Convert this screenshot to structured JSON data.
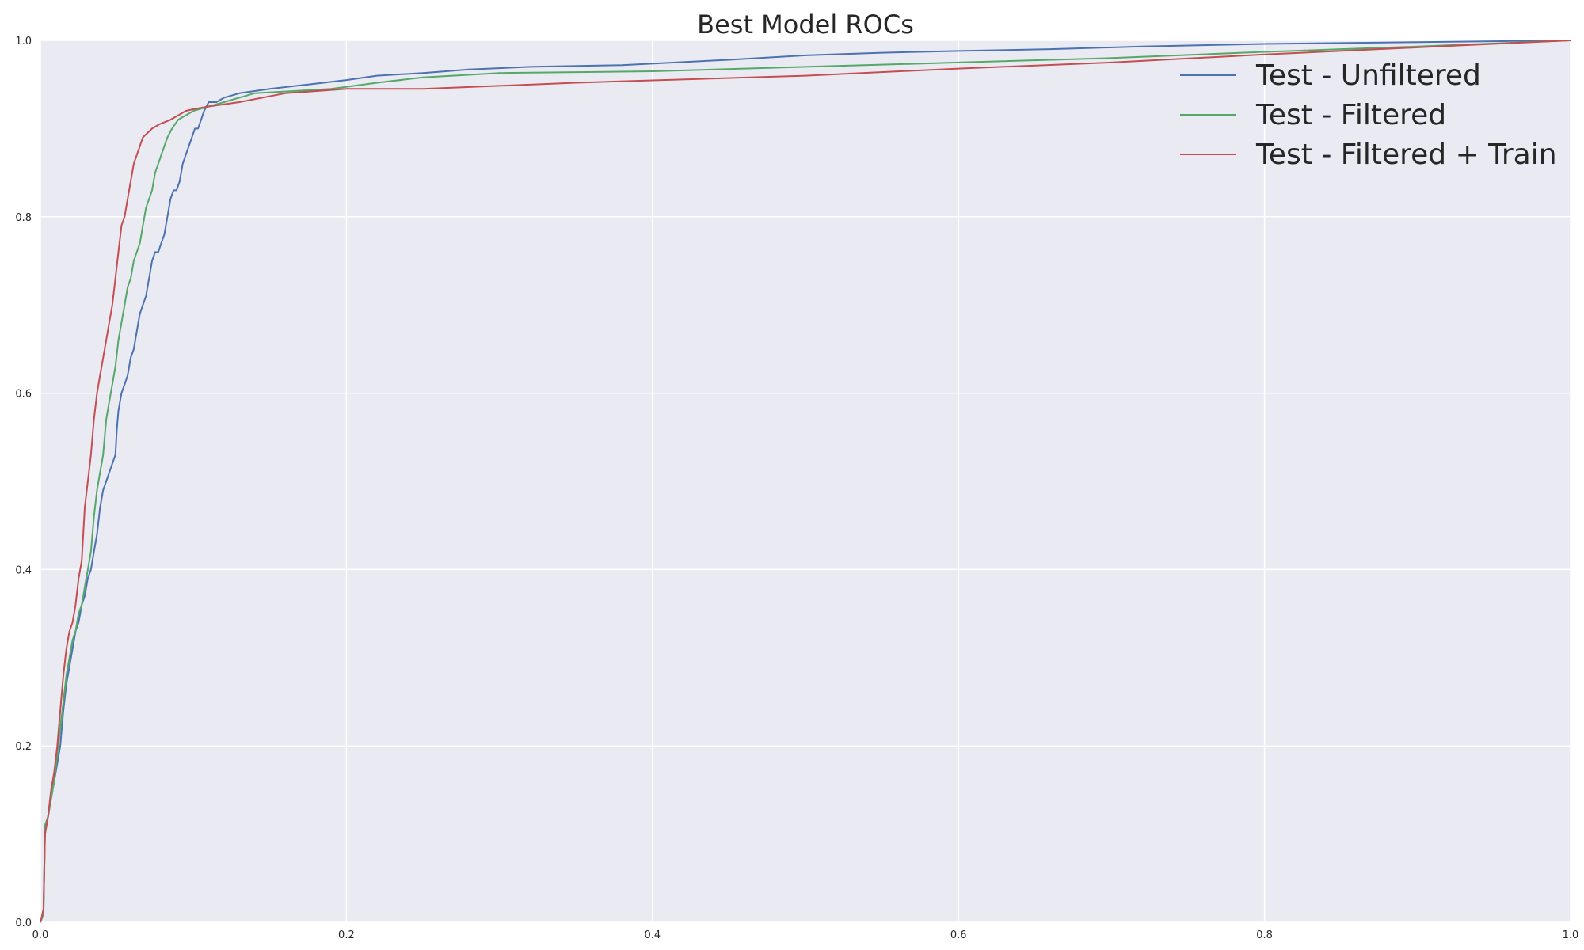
{
  "chart_data": {
    "type": "line",
    "title": "Best Model ROCs",
    "xlabel": "",
    "ylabel": "",
    "xlim": [
      0,
      1
    ],
    "ylim": [
      0,
      1
    ],
    "x_ticks": [
      "0.0",
      "0.2",
      "0.4",
      "0.6",
      "0.8",
      "1.0"
    ],
    "y_ticks": [
      "0.0",
      "0.2",
      "0.4",
      "0.6",
      "0.8",
      "1.0"
    ],
    "grid": true,
    "legend_position": "top-right",
    "series": [
      {
        "name": "Test - Unfiltered",
        "color": "#4c72b0",
        "points": [
          [
            0,
            0
          ],
          [
            0.002,
            0.01
          ],
          [
            0.003,
            0.1
          ],
          [
            0.005,
            0.12
          ],
          [
            0.007,
            0.14
          ],
          [
            0.009,
            0.16
          ],
          [
            0.011,
            0.18
          ],
          [
            0.013,
            0.2
          ],
          [
            0.015,
            0.24
          ],
          [
            0.017,
            0.27
          ],
          [
            0.019,
            0.29
          ],
          [
            0.021,
            0.31
          ],
          [
            0.023,
            0.33
          ],
          [
            0.025,
            0.34
          ],
          [
            0.027,
            0.36
          ],
          [
            0.029,
            0.37
          ],
          [
            0.031,
            0.39
          ],
          [
            0.033,
            0.4
          ],
          [
            0.035,
            0.42
          ],
          [
            0.037,
            0.44
          ],
          [
            0.039,
            0.47
          ],
          [
            0.041,
            0.49
          ],
          [
            0.043,
            0.5
          ],
          [
            0.045,
            0.51
          ],
          [
            0.047,
            0.52
          ],
          [
            0.049,
            0.53
          ],
          [
            0.05,
            0.56
          ],
          [
            0.051,
            0.58
          ],
          [
            0.053,
            0.6
          ],
          [
            0.055,
            0.61
          ],
          [
            0.057,
            0.62
          ],
          [
            0.059,
            0.64
          ],
          [
            0.061,
            0.65
          ],
          [
            0.063,
            0.67
          ],
          [
            0.065,
            0.69
          ],
          [
            0.067,
            0.7
          ],
          [
            0.069,
            0.71
          ],
          [
            0.071,
            0.73
          ],
          [
            0.073,
            0.75
          ],
          [
            0.075,
            0.76
          ],
          [
            0.077,
            0.76
          ],
          [
            0.079,
            0.77
          ],
          [
            0.081,
            0.78
          ],
          [
            0.083,
            0.8
          ],
          [
            0.085,
            0.82
          ],
          [
            0.087,
            0.83
          ],
          [
            0.089,
            0.83
          ],
          [
            0.091,
            0.84
          ],
          [
            0.093,
            0.86
          ],
          [
            0.095,
            0.87
          ],
          [
            0.097,
            0.88
          ],
          [
            0.099,
            0.89
          ],
          [
            0.101,
            0.9
          ],
          [
            0.103,
            0.9
          ],
          [
            0.105,
            0.91
          ],
          [
            0.107,
            0.92
          ],
          [
            0.11,
            0.93
          ],
          [
            0.115,
            0.93
          ],
          [
            0.12,
            0.935
          ],
          [
            0.13,
            0.94
          ],
          [
            0.15,
            0.945
          ],
          [
            0.175,
            0.95
          ],
          [
            0.2,
            0.955
          ],
          [
            0.22,
            0.96
          ],
          [
            0.25,
            0.963
          ],
          [
            0.28,
            0.967
          ],
          [
            0.32,
            0.97
          ],
          [
            0.38,
            0.972
          ],
          [
            0.45,
            0.978
          ],
          [
            0.5,
            0.983
          ],
          [
            0.55,
            0.986
          ],
          [
            0.6,
            0.988
          ],
          [
            0.66,
            0.99
          ],
          [
            0.72,
            0.993
          ],
          [
            0.8,
            0.996
          ],
          [
            0.9,
            0.998
          ],
          [
            1.0,
            1.0
          ]
        ]
      },
      {
        "name": "Test - Filtered",
        "color": "#55a868",
        "points": [
          [
            0,
            0
          ],
          [
            0.002,
            0.01
          ],
          [
            0.003,
            0.11
          ],
          [
            0.005,
            0.12
          ],
          [
            0.007,
            0.14
          ],
          [
            0.009,
            0.16
          ],
          [
            0.011,
            0.19
          ],
          [
            0.013,
            0.22
          ],
          [
            0.015,
            0.25
          ],
          [
            0.017,
            0.28
          ],
          [
            0.019,
            0.3
          ],
          [
            0.021,
            0.32
          ],
          [
            0.023,
            0.33
          ],
          [
            0.025,
            0.35
          ],
          [
            0.027,
            0.36
          ],
          [
            0.029,
            0.38
          ],
          [
            0.031,
            0.4
          ],
          [
            0.033,
            0.42
          ],
          [
            0.035,
            0.46
          ],
          [
            0.037,
            0.49
          ],
          [
            0.039,
            0.51
          ],
          [
            0.041,
            0.53
          ],
          [
            0.043,
            0.57
          ],
          [
            0.045,
            0.59
          ],
          [
            0.047,
            0.61
          ],
          [
            0.049,
            0.63
          ],
          [
            0.051,
            0.66
          ],
          [
            0.053,
            0.68
          ],
          [
            0.055,
            0.7
          ],
          [
            0.057,
            0.72
          ],
          [
            0.059,
            0.73
          ],
          [
            0.061,
            0.75
          ],
          [
            0.063,
            0.76
          ],
          [
            0.065,
            0.77
          ],
          [
            0.067,
            0.79
          ],
          [
            0.069,
            0.81
          ],
          [
            0.071,
            0.82
          ],
          [
            0.073,
            0.83
          ],
          [
            0.075,
            0.85
          ],
          [
            0.077,
            0.86
          ],
          [
            0.079,
            0.87
          ],
          [
            0.081,
            0.88
          ],
          [
            0.083,
            0.89
          ],
          [
            0.086,
            0.9
          ],
          [
            0.09,
            0.91
          ],
          [
            0.095,
            0.915
          ],
          [
            0.1,
            0.92
          ],
          [
            0.11,
            0.925
          ],
          [
            0.12,
            0.93
          ],
          [
            0.14,
            0.94
          ],
          [
            0.17,
            0.943
          ],
          [
            0.19,
            0.945
          ],
          [
            0.22,
            0.952
          ],
          [
            0.25,
            0.958
          ],
          [
            0.3,
            0.963
          ],
          [
            0.4,
            0.965
          ],
          [
            0.5,
            0.97
          ],
          [
            0.6,
            0.975
          ],
          [
            0.7,
            0.98
          ],
          [
            0.8,
            0.987
          ],
          [
            0.9,
            0.993
          ],
          [
            1.0,
            1.0
          ]
        ]
      },
      {
        "name": "Test - Filtered + Train",
        "color": "#c44e52",
        "points": [
          [
            0,
            0
          ],
          [
            0.002,
            0.015
          ],
          [
            0.003,
            0.1
          ],
          [
            0.005,
            0.12
          ],
          [
            0.007,
            0.15
          ],
          [
            0.009,
            0.17
          ],
          [
            0.011,
            0.2
          ],
          [
            0.013,
            0.24
          ],
          [
            0.015,
            0.28
          ],
          [
            0.017,
            0.31
          ],
          [
            0.019,
            0.33
          ],
          [
            0.021,
            0.34
          ],
          [
            0.023,
            0.36
          ],
          [
            0.025,
            0.39
          ],
          [
            0.027,
            0.41
          ],
          [
            0.029,
            0.47
          ],
          [
            0.031,
            0.5
          ],
          [
            0.033,
            0.53
          ],
          [
            0.035,
            0.57
          ],
          [
            0.037,
            0.6
          ],
          [
            0.039,
            0.62
          ],
          [
            0.041,
            0.64
          ],
          [
            0.043,
            0.66
          ],
          [
            0.045,
            0.68
          ],
          [
            0.047,
            0.7
          ],
          [
            0.049,
            0.73
          ],
          [
            0.051,
            0.76
          ],
          [
            0.053,
            0.79
          ],
          [
            0.055,
            0.8
          ],
          [
            0.057,
            0.82
          ],
          [
            0.059,
            0.84
          ],
          [
            0.061,
            0.86
          ],
          [
            0.063,
            0.87
          ],
          [
            0.065,
            0.88
          ],
          [
            0.067,
            0.89
          ],
          [
            0.07,
            0.895
          ],
          [
            0.073,
            0.9
          ],
          [
            0.078,
            0.905
          ],
          [
            0.085,
            0.91
          ],
          [
            0.09,
            0.915
          ],
          [
            0.095,
            0.92
          ],
          [
            0.1,
            0.922
          ],
          [
            0.11,
            0.925
          ],
          [
            0.13,
            0.93
          ],
          [
            0.16,
            0.94
          ],
          [
            0.2,
            0.945
          ],
          [
            0.25,
            0.945
          ],
          [
            0.35,
            0.952
          ],
          [
            0.5,
            0.96
          ],
          [
            0.6,
            0.968
          ],
          [
            0.7,
            0.975
          ],
          [
            0.8,
            0.984
          ],
          [
            0.9,
            0.992
          ],
          [
            1.0,
            1.0
          ]
        ]
      }
    ]
  }
}
